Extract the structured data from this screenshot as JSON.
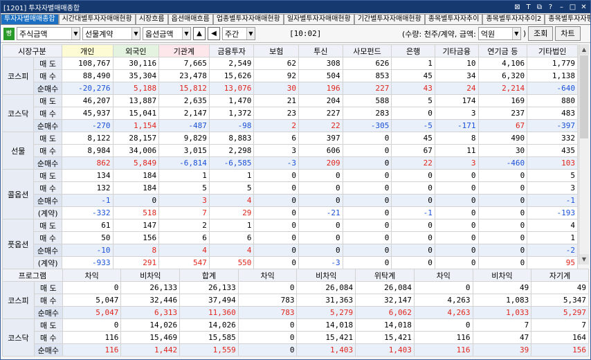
{
  "title": "[1201] 투자자별매매종합",
  "tabs": [
    "투자자별매매종합",
    "시간대별투자자매매현황",
    "시장흐름",
    "옵션매매흐름",
    "업종별투자자매매현황",
    "일자별투자자매매현황",
    "기간별투자자매매현황",
    "종목별투자자추이",
    "종목별투자자추이2",
    "종목별투자자평균단가추이"
  ],
  "toolbar": {
    "badge": "빵",
    "sel1": "주식금액",
    "sel2": "선물계약",
    "sel3": "옵션금액",
    "sel4": "주간",
    "time": "[10:02]",
    "unit": "(수량: 천주/계약, 금액:",
    "unit_sel": "억원",
    "unit_end": ")",
    "query": "조회",
    "chart": "차트"
  },
  "top": {
    "headers": [
      "시장구분",
      "",
      "개인",
      "외국인",
      "기관계",
      "금융투자",
      "보험",
      "투신",
      "사모펀드",
      "은행",
      "기타금융",
      "연기금 등",
      "기타법인"
    ],
    "sections": [
      {
        "name": "코스피",
        "rows": [
          {
            "label": "매 도",
            "vals": [
              "108,767",
              "30,116",
              "7,665",
              "2,549",
              "62",
              "308",
              "626",
              "1",
              "10",
              "4,106",
              "1,779"
            ]
          },
          {
            "label": "매 수",
            "vals": [
              "88,490",
              "35,304",
              "23,478",
              "15,626",
              "92",
              "504",
              "853",
              "45",
              "34",
              "6,320",
              "1,138"
            ]
          },
          {
            "label": "순매수",
            "net": true,
            "vals": [
              "-20,276",
              "5,188",
              "15,812",
              "13,076",
              "30",
              "196",
              "227",
              "43",
              "24",
              "2,214",
              "-640"
            ]
          }
        ]
      },
      {
        "name": "코스닥",
        "rows": [
          {
            "label": "매 도",
            "vals": [
              "46,207",
              "13,887",
              "2,635",
              "1,470",
              "21",
              "204",
              "588",
              "5",
              "174",
              "169",
              "880"
            ]
          },
          {
            "label": "매 수",
            "vals": [
              "45,937",
              "15,041",
              "2,147",
              "1,372",
              "23",
              "227",
              "283",
              "0",
              "3",
              "237",
              "483"
            ]
          },
          {
            "label": "순매수",
            "net": true,
            "vals": [
              "-270",
              "1,154",
              "-487",
              "-98",
              "2",
              "22",
              "-305",
              "-5",
              "-171",
              "67",
              "-397"
            ]
          }
        ]
      },
      {
        "name": "선물",
        "rows": [
          {
            "label": "매 도",
            "vals": [
              "8,122",
              "28,157",
              "9,829",
              "8,883",
              "6",
              "397",
              "0",
              "45",
              "8",
              "490",
              "332"
            ]
          },
          {
            "label": "매 수",
            "vals": [
              "8,984",
              "34,006",
              "3,015",
              "2,298",
              "3",
              "606",
              "0",
              "67",
              "11",
              "30",
              "435"
            ]
          },
          {
            "label": "순매수",
            "net": true,
            "vals": [
              "862",
              "5,849",
              "-6,814",
              "-6,585",
              "-3",
              "209",
              "0",
              "22",
              "3",
              "-460",
              "103"
            ]
          }
        ]
      },
      {
        "name": "콜옵션",
        "rows": [
          {
            "label": "매 도",
            "vals": [
              "134",
              "184",
              "1",
              "1",
              "0",
              "0",
              "0",
              "0",
              "0",
              "0",
              "5"
            ]
          },
          {
            "label": "매 수",
            "vals": [
              "132",
              "184",
              "5",
              "5",
              "0",
              "0",
              "0",
              "0",
              "0",
              "0",
              "3"
            ]
          },
          {
            "label": "순매수",
            "net": true,
            "vals": [
              "-1",
              "0",
              "3",
              "4",
              "0",
              "0",
              "0",
              "0",
              "0",
              "0",
              "-1"
            ]
          },
          {
            "label": "(계약)",
            "vals": [
              "-332",
              "518",
              "7",
              "29",
              "0",
              "-21",
              "0",
              "-1",
              "0",
              "0",
              "-193"
            ]
          }
        ]
      },
      {
        "name": "풋옵션",
        "rows": [
          {
            "label": "매 도",
            "vals": [
              "61",
              "147",
              "2",
              "1",
              "0",
              "0",
              "0",
              "0",
              "0",
              "0",
              "4"
            ]
          },
          {
            "label": "매 수",
            "vals": [
              "50",
              "156",
              "6",
              "6",
              "0",
              "0",
              "0",
              "0",
              "0",
              "0",
              "1"
            ]
          },
          {
            "label": "순매수",
            "net": true,
            "vals": [
              "-10",
              "8",
              "4",
              "4",
              "0",
              "0",
              "0",
              "0",
              "0",
              "0",
              "-2"
            ]
          },
          {
            "label": "(계약)",
            "vals": [
              "-933",
              "291",
              "547",
              "550",
              "0",
              "-3",
              "0",
              "0",
              "0",
              "0",
              "95"
            ]
          }
        ]
      }
    ]
  },
  "bottom": {
    "headers": [
      "프로그램",
      "",
      "차익",
      "비차익",
      "합계",
      "차익",
      "비차익",
      "위탁계",
      "차익",
      "비차익",
      "자기계"
    ],
    "sections": [
      {
        "name": "코스피",
        "rows": [
          {
            "label": "매 도",
            "vals": [
              "0",
              "26,133",
              "26,133",
              "0",
              "26,084",
              "26,084",
              "0",
              "49",
              "49"
            ]
          },
          {
            "label": "매 수",
            "vals": [
              "5,047",
              "32,446",
              "37,494",
              "783",
              "31,363",
              "32,147",
              "4,263",
              "1,083",
              "5,347"
            ]
          },
          {
            "label": "순매수",
            "net": true,
            "vals": [
              "5,047",
              "6,313",
              "11,360",
              "783",
              "5,279",
              "6,062",
              "4,263",
              "1,033",
              "5,297"
            ]
          }
        ]
      },
      {
        "name": "코스닥",
        "rows": [
          {
            "label": "매 도",
            "vals": [
              "0",
              "14,026",
              "14,026",
              "0",
              "14,018",
              "14,018",
              "0",
              "7",
              "7"
            ]
          },
          {
            "label": "매 수",
            "vals": [
              "116",
              "15,469",
              "15,585",
              "0",
              "15,421",
              "15,421",
              "116",
              "47",
              "164"
            ]
          },
          {
            "label": "순매수",
            "net": true,
            "vals": [
              "116",
              "1,442",
              "1,559",
              "0",
              "1,403",
              "1,403",
              "116",
              "39",
              "156"
            ]
          }
        ]
      }
    ]
  },
  "colors": {
    "title_bg": "#163a6f",
    "tab_active": "#1b6fc2",
    "positive": "#e0241c",
    "negative": "#1a50d9"
  }
}
